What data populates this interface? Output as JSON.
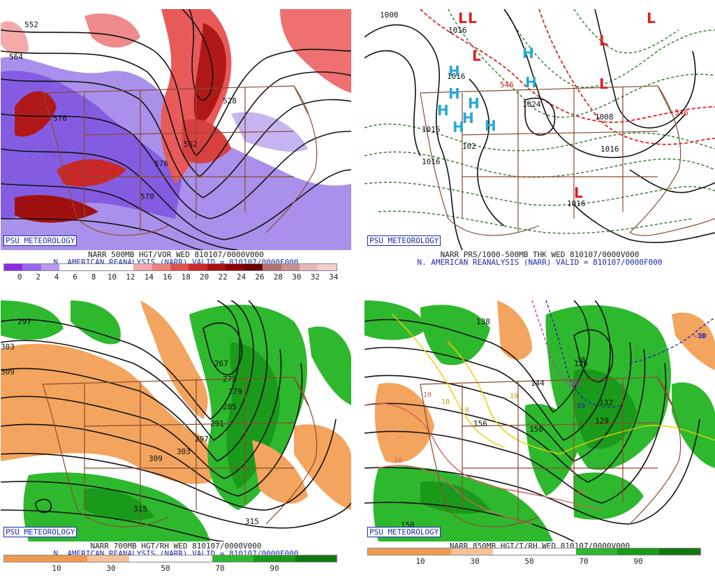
{
  "panels": [
    {
      "id": "500mb",
      "psu_label": "PSU METEOROLOGY",
      "title_line1": "NARR 500MB HGT/VOR WED 810107/0000V000",
      "title_line2": "N. AMERICAN REANALYSIS (NARR) VALID = 810107/0000F000",
      "colorbar": [
        "#8a2be2",
        "#9966ee",
        "#b59af0",
        "#ffffff",
        "#ffffff",
        "#ffffff",
        "#ffffff",
        "#f4aaaa",
        "#ee8080",
        "#e05050",
        "#cc2a2a",
        "#aa1010",
        "#880000",
        "#6a0000",
        "#b07070",
        "#c89090",
        "#e8b8b8",
        "#f2d0d0"
      ],
      "ticks": [
        "0",
        "2",
        "4",
        "6",
        "8",
        "10",
        "12",
        "14",
        "16",
        "18",
        "20",
        "22",
        "24",
        "26",
        "28",
        "30",
        "32",
        "34"
      ],
      "contour_labels": [
        "552",
        "564",
        "576",
        "528",
        "552",
        "576",
        "570"
      ]
    },
    {
      "id": "prs",
      "psu_label": "PSU METEOROLOGY",
      "title_line1": "NARR PRS/1000-500MB THK WED 810107/0000V000",
      "title_line2": "N. AMERICAN REANALYSIS (NARR) VALID = 810107/0000F000",
      "pressure_labels": [
        "1000",
        "1016",
        "1016",
        "1016",
        "1024",
        "1008",
        "1016",
        "1016",
        "102",
        "1016"
      ],
      "thickness_labels": [
        "546",
        "546"
      ],
      "highs": [
        "H",
        "H",
        "H",
        "H",
        "H",
        "H",
        "H",
        "H",
        "H"
      ],
      "lows": [
        "L",
        "L",
        "L",
        "L",
        "L",
        "L",
        "L"
      ]
    },
    {
      "id": "700mb",
      "psu_label": "PSU METEOROLOGY",
      "title_line1": "NARR 700MB HGT/RH WED 810107/0000V000",
      "title_line2": "N. AMERICAN REANALYSIS (NARR) VALID = 810107/0000F000",
      "colorbar": [
        "#f09a50",
        "#f09a50",
        "#f5c298",
        "#ffffff",
        "#ffffff",
        "#2eb82e",
        "#1a9a1a",
        "#117711"
      ],
      "ticks": [
        "10",
        "30",
        "50",
        "70",
        "90"
      ],
      "contour_labels": [
        "297",
        "303",
        "309",
        "267",
        "273",
        "279",
        "285",
        "291",
        "297",
        "303",
        "309",
        "315",
        "315"
      ]
    },
    {
      "id": "850mb",
      "psu_label": "PSU METEOROLOGY",
      "title_line1": "NARR 850MB HGT/T/RH WED 810107/0000V000",
      "colorbar": [
        "#f09a50",
        "#f09a50",
        "#f5c298",
        "#ffffff",
        "#ffffff",
        "#2eb82e",
        "#1a9a1a",
        "#117711"
      ],
      "ticks": [
        "10",
        "30",
        "50",
        "70",
        "90"
      ],
      "height_labels": [
        "138",
        "126",
        "144",
        "150",
        "156",
        "132",
        "129",
        "150"
      ],
      "temp_labels": [
        "-10",
        "-30",
        "-20",
        "-10",
        "-10",
        "10",
        "0",
        "10",
        "10",
        "10",
        "0",
        "10"
      ]
    }
  ]
}
